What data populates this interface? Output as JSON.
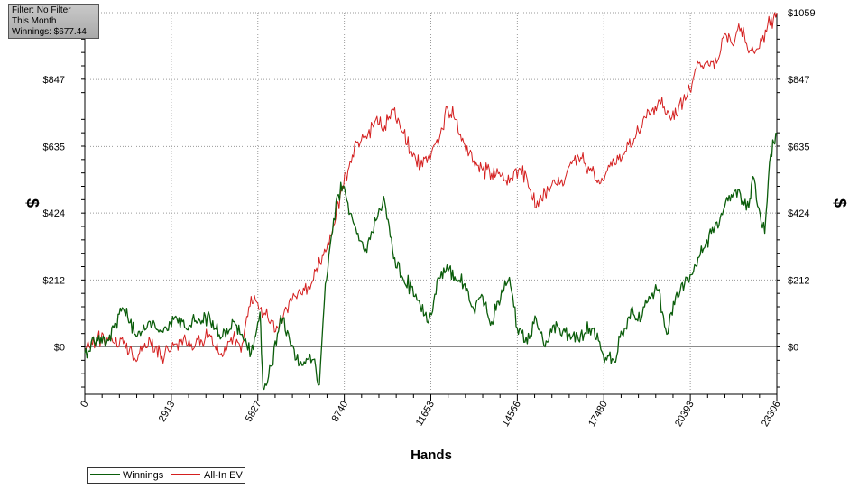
{
  "filter_box": {
    "line1": "Filter: No Filter",
    "line2": "This Month",
    "line3": "Winnings: $677.44"
  },
  "legend": {
    "items": [
      {
        "label": "Winnings",
        "color": "#0b5d0b"
      },
      {
        "label": "All-In EV",
        "color": "#d41f1f"
      }
    ]
  },
  "chart_data": {
    "type": "line",
    "xlabel": "Hands",
    "ylabel": "$",
    "xlim": [
      0,
      23306
    ],
    "ylim": [
      -150,
      1059
    ],
    "x_ticks": [
      0,
      2913,
      5827,
      8740,
      11653,
      14566,
      17480,
      20393,
      23306
    ],
    "y_ticks": [
      {
        "value": 0,
        "label": "$0"
      },
      {
        "value": 212,
        "label": "$212"
      },
      {
        "value": 424,
        "label": "$424"
      },
      {
        "value": 635,
        "label": "$635"
      },
      {
        "value": 847,
        "label": "$847"
      },
      {
        "value": 1059,
        "label": "$1059"
      }
    ],
    "grid": true,
    "series": [
      {
        "name": "Winnings",
        "color": "#0b5d0b",
        "x": [
          0,
          400,
          800,
          1300,
          1700,
          2200,
          2600,
          3100,
          3400,
          3700,
          4200,
          4600,
          5000,
          5300,
          5600,
          5900,
          6000,
          6300,
          6600,
          6900,
          7200,
          7500,
          7700,
          7900,
          8100,
          8300,
          8500,
          8700,
          8900,
          9200,
          9500,
          9800,
          10100,
          10400,
          10700,
          11000,
          11300,
          11600,
          11900,
          12200,
          12500,
          12800,
          13100,
          13400,
          13700,
          14000,
          14300,
          14600,
          14900,
          15200,
          15500,
          15800,
          16100,
          16400,
          16700,
          17000,
          17300,
          17500,
          17800,
          18100,
          18400,
          18700,
          19000,
          19300,
          19600,
          19900,
          20200,
          20500,
          20800,
          21100,
          21400,
          21700,
          22000,
          22200,
          22400,
          22500,
          22700,
          22900,
          23100,
          23306
        ],
        "y": [
          -20,
          30,
          20,
          120,
          40,
          80,
          50,
          90,
          60,
          80,
          100,
          30,
          80,
          40,
          -20,
          110,
          -130,
          -60,
          100,
          20,
          -60,
          -40,
          -40,
          -120,
          200,
          350,
          480,
          510,
          420,
          360,
          300,
          400,
          460,
          280,
          220,
          190,
          130,
          90,
          220,
          260,
          210,
          200,
          120,
          160,
          80,
          150,
          220,
          40,
          10,
          90,
          0,
          70,
          50,
          30,
          40,
          60,
          20,
          -50,
          -40,
          40,
          120,
          80,
          160,
          180,
          40,
          160,
          200,
          240,
          300,
          360,
          410,
          480,
          500,
          450,
          470,
          540,
          440,
          360,
          610,
          677
        ]
      },
      {
        "name": "All-In EV",
        "color": "#d41f1f",
        "x": [
          0,
          400,
          800,
          1300,
          1700,
          2200,
          2600,
          3100,
          3400,
          3700,
          4200,
          4600,
          5000,
          5300,
          5600,
          5900,
          6200,
          6500,
          6800,
          7100,
          7400,
          7700,
          8000,
          8300,
          8600,
          8900,
          9200,
          9500,
          9800,
          10100,
          10400,
          10700,
          11000,
          11300,
          11600,
          11900,
          12200,
          12500,
          12800,
          13100,
          13400,
          13700,
          14000,
          14300,
          14600,
          14900,
          15200,
          15500,
          15800,
          16100,
          16400,
          16700,
          17000,
          17300,
          17600,
          17900,
          18200,
          18500,
          18800,
          19100,
          19400,
          19700,
          20000,
          20300,
          20600,
          20900,
          21200,
          21500,
          21800,
          22100,
          22400,
          22600,
          22800,
          23000,
          23306
        ],
        "y": [
          -10,
          20,
          30,
          10,
          -40,
          20,
          -30,
          10,
          20,
          0,
          40,
          -20,
          30,
          10,
          160,
          120,
          80,
          60,
          120,
          160,
          180,
          210,
          290,
          350,
          480,
          570,
          650,
          660,
          720,
          700,
          750,
          680,
          620,
          570,
          610,
          640,
          760,
          720,
          640,
          590,
          560,
          550,
          540,
          520,
          560,
          530,
          440,
          490,
          530,
          510,
          580,
          600,
          560,
          530,
          560,
          580,
          620,
          660,
          720,
          750,
          770,
          730,
          760,
          800,
          880,
          900,
          880,
          980,
          960,
          1010,
          940,
          940,
          970,
          1020,
          1059
        ]
      }
    ]
  }
}
